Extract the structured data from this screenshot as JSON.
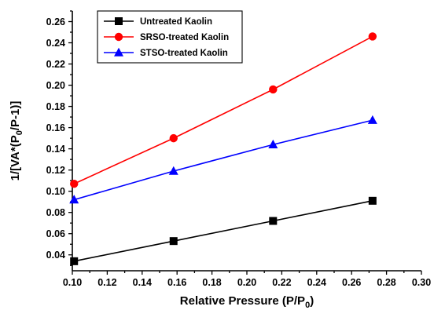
{
  "chart_data": {
    "type": "line",
    "title": "",
    "xlabel": "Relative Pressure (P/P0)",
    "xlabel_parts": {
      "main": "Relative Pressure (P/P",
      "sub": "0",
      "end": ")"
    },
    "ylabel": "1/[VA*(P0/P-1)]",
    "ylabel_parts": {
      "main": "1/[VA*(P",
      "sub": "0",
      "end": "/P-1)]"
    },
    "xlim": [
      0.1,
      0.3
    ],
    "ylim": [
      0.025,
      0.27
    ],
    "xticks": [
      "0.10",
      "0.12",
      "0.14",
      "0.16",
      "0.18",
      "0.20",
      "0.22",
      "0.24",
      "0.26",
      "0.28",
      "0.30"
    ],
    "yticks": [
      "0.04",
      "0.06",
      "0.08",
      "0.10",
      "0.12",
      "0.14",
      "0.16",
      "0.18",
      "0.20",
      "0.22",
      "0.24",
      "0.26"
    ],
    "legend_position": "top-left",
    "x": [
      0.101,
      0.158,
      0.215,
      0.272
    ],
    "series": [
      {
        "name": "Untreated Kaolin",
        "marker": "square",
        "color": "#000000",
        "values": [
          0.034,
          0.053,
          0.072,
          0.091
        ]
      },
      {
        "name": "SRSO-treated Kaolin",
        "marker": "circle",
        "color": "#ff0000",
        "values": [
          0.107,
          0.15,
          0.196,
          0.246
        ]
      },
      {
        "name": "STSO-treated Kaolin",
        "marker": "triangle",
        "color": "#0000ff",
        "values": [
          0.092,
          0.119,
          0.144,
          0.167
        ]
      }
    ]
  }
}
